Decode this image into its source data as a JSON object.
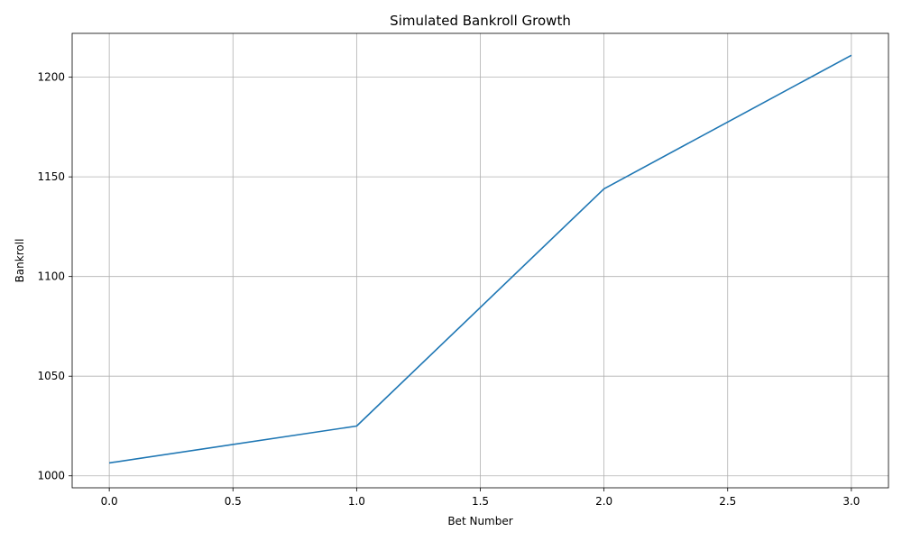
{
  "chart_data": {
    "type": "line",
    "title": "Simulated Bankroll Growth",
    "xlabel": "Bet Number",
    "ylabel": "Bankroll",
    "xlim": [
      -0.15,
      3.15
    ],
    "ylim": [
      994,
      1222
    ],
    "xticks": [
      0.0,
      0.5,
      1.0,
      1.5,
      2.0,
      2.5,
      3.0
    ],
    "xtick_labels": [
      "0.0",
      "0.5",
      "1.0",
      "1.5",
      "2.0",
      "2.5",
      "3.0"
    ],
    "yticks": [
      1000,
      1050,
      1100,
      1150,
      1200
    ],
    "ytick_labels": [
      "1000",
      "1050",
      "1100",
      "1150",
      "1200"
    ],
    "grid": true,
    "series": [
      {
        "color": "#1f77b4",
        "x": [
          0,
          1,
          2,
          3
        ],
        "y": [
          1006.5,
          1025,
          1144,
          1211
        ]
      }
    ]
  }
}
